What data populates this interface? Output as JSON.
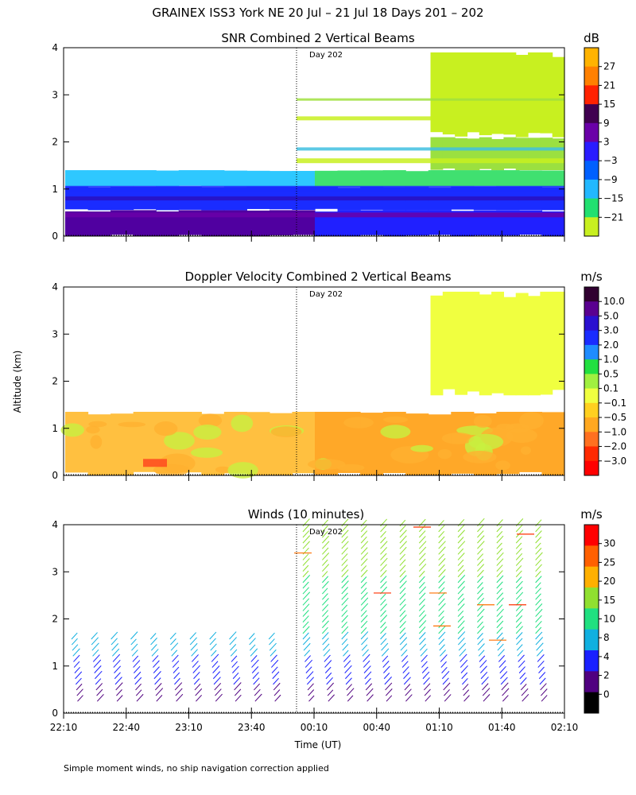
{
  "figure_title": "GRAINEX ISS3 York NE  20 Jul – 21 Jul 18 Days 201 – 202",
  "ylabel": "Altitude (km)",
  "xlabel": "Time (UT)",
  "footnote": "Simple moment winds, no ship navigation correction applied",
  "day_marker": "Day 202",
  "chart_data": [
    {
      "type": "heatmap",
      "title": "SNR Combined 2 Vertical Beams",
      "unit": "dB",
      "x_tick_labels": [],
      "y_ticks": [
        0,
        1,
        2,
        3,
        4
      ],
      "ylim": [
        0,
        4
      ],
      "colorbar_labels": [
        "27",
        "21",
        "15",
        "9",
        "3",
        "−3",
        "−9",
        "−15",
        "−21"
      ],
      "colorbar_colors": [
        "#ffb300",
        "#ff8000",
        "#ff2200",
        "#400050",
        "#6a00a8",
        "#2a1cff",
        "#0060ff",
        "#22b8ff",
        "#22e070",
        "#c8f020"
      ],
      "layers": [
        {
          "range": [
            0.0,
            0.55
          ],
          "left": "#5000a0",
          "right": "#2020ff"
        },
        {
          "range": [
            0.55,
            1.05
          ],
          "left": "#1a2cff",
          "right": "#1a2cff"
        },
        {
          "range": [
            1.05,
            1.4
          ],
          "left": "#2ec8ff",
          "right": "#40e070"
        },
        {
          "range": [
            1.4,
            2.1
          ],
          "left": "#ffffff",
          "right": "#9be040"
        },
        {
          "range": [
            2.1,
            3.9
          ],
          "left": "#ffffff",
          "right": "#c8f020"
        }
      ]
    },
    {
      "type": "heatmap",
      "title": "Doppler Velocity Combined 2 Vertical Beams",
      "unit": "m/s",
      "x_tick_labels": [],
      "y_ticks": [
        0,
        1,
        2,
        3,
        4
      ],
      "ylim": [
        0,
        4
      ],
      "colorbar_labels": [
        "10.0",
        "5.0",
        "3.0",
        "2.0",
        "1.0",
        "0.5",
        "0.1",
        "−0.1",
        "−0.5",
        "−1.0",
        "−2.0",
        "−3.0"
      ],
      "colorbar_colors": [
        "#300030",
        "#5a0090",
        "#2a10d0",
        "#1a2cff",
        "#1f8cff",
        "#22e040",
        "#a0f040",
        "#f0ff40",
        "#ffd020",
        "#ffa820",
        "#ff7020",
        "#ff2a00",
        "#ff0000"
      ],
      "layers": [
        {
          "range": [
            0.0,
            1.35
          ],
          "left": "#ffc040",
          "right": "#ffa828"
        },
        {
          "range": [
            1.7,
            3.9
          ],
          "left": "#ffffff",
          "right": "#f0ff40"
        }
      ]
    },
    {
      "type": "wind_barbs",
      "title": "Winds (10 minutes)",
      "unit": "m/s",
      "x_tick_labels": [
        "22:10",
        "22:40",
        "23:10",
        "23:40",
        "00:10",
        "00:40",
        "01:10",
        "01:40",
        "02:10"
      ],
      "y_ticks": [
        0,
        1,
        2,
        3,
        4
      ],
      "ylim": [
        0,
        4
      ],
      "colorbar_labels": [
        "30",
        "25",
        "20",
        "15",
        "10",
        "8",
        "4",
        "2",
        "0"
      ],
      "colorbar_colors": [
        "#ff0000",
        "#ff6000",
        "#ffb000",
        "#90e030",
        "#20e080",
        "#10b0e0",
        "#1a20ff",
        "#500080",
        "#000000"
      ],
      "profiles_before": {
        "count": 11,
        "top_km": 1.6
      },
      "profiles_after": {
        "count": 13,
        "top_km": 4.0
      }
    }
  ]
}
